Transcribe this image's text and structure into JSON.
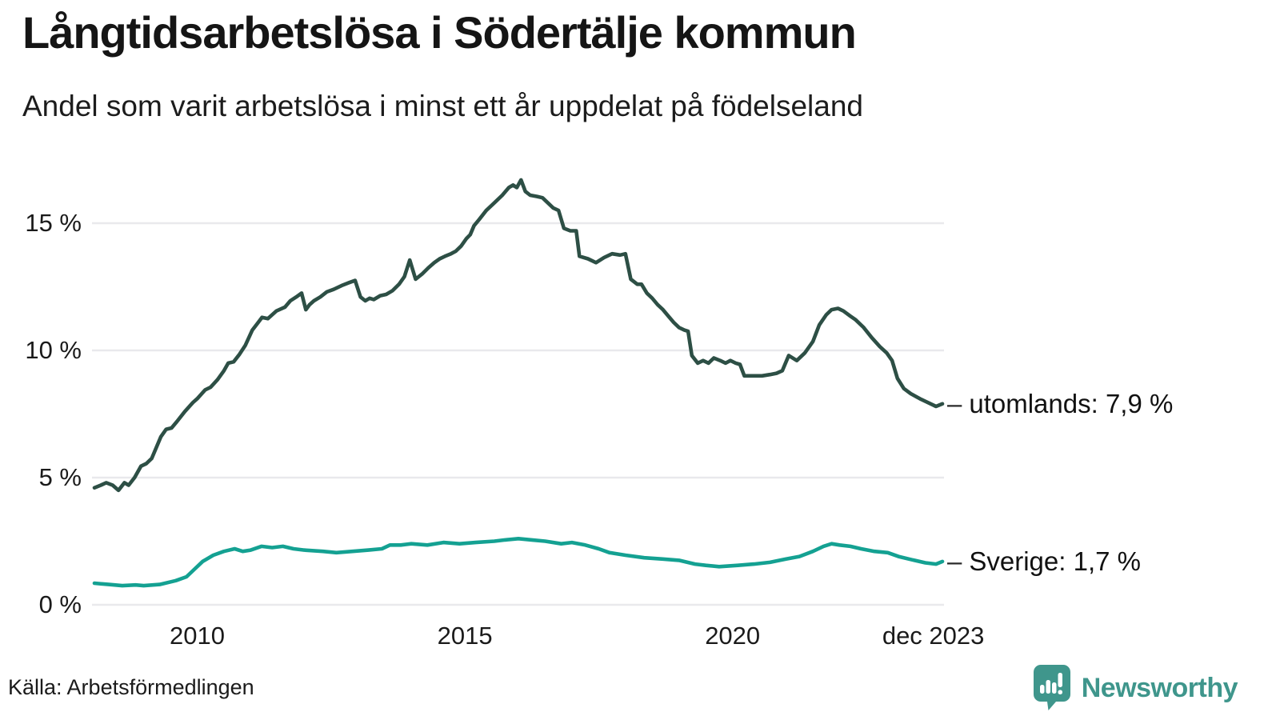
{
  "header": {
    "title": "Långtidsarbetslösa i Södertälje kommun",
    "subtitle": "Andel som varit arbetslösa i minst ett år uppdelat på födelseland"
  },
  "source": {
    "label": "Källa: Arbetsförmedlingen"
  },
  "branding": {
    "name": "Newsworthy",
    "logo_color": "#3f968c"
  },
  "chart_data": {
    "type": "line",
    "title": "Långtidsarbetslösa i Södertälje kommun",
    "subtitle": "Andel som varit arbetslösa i minst ett år uppdelat på födelseland",
    "unit": "%",
    "grid": "horizontal",
    "legend_position": "end-of-line-labels",
    "xlim": [
      2008.08,
      2023.92
    ],
    "ylim": [
      0,
      17.3
    ],
    "background": "#ffffff",
    "gridline_color": "#e9e9ec",
    "y_ticks": [
      {
        "label": "15 %",
        "value": 15
      },
      {
        "label": "10 %",
        "value": 10
      },
      {
        "label": "5 %",
        "value": 5
      },
      {
        "label": "0 %",
        "value": 0
      }
    ],
    "x_ticks": [
      {
        "label": "2010",
        "t": 2010
      },
      {
        "label": "2015",
        "t": 2015
      },
      {
        "label": "2020",
        "t": 2020
      },
      {
        "label": "dec 2023",
        "t": 2023.75
      }
    ],
    "series": [
      {
        "name": "utomlands",
        "end_label": "utomlands: 7,9 %",
        "end_value_text": "7,9 %",
        "color": "#2d4f45",
        "points": [
          [
            2008.08,
            4.6
          ],
          [
            2008.2,
            4.7
          ],
          [
            2008.3,
            4.8
          ],
          [
            2008.42,
            4.7
          ],
          [
            2008.53,
            4.5
          ],
          [
            2008.64,
            4.8
          ],
          [
            2008.72,
            4.7
          ],
          [
            2008.83,
            5.0
          ],
          [
            2008.95,
            5.45
          ],
          [
            2009.05,
            5.55
          ],
          [
            2009.15,
            5.75
          ],
          [
            2009.22,
            6.1
          ],
          [
            2009.32,
            6.6
          ],
          [
            2009.42,
            6.9
          ],
          [
            2009.52,
            6.95
          ],
          [
            2009.62,
            7.2
          ],
          [
            2009.77,
            7.6
          ],
          [
            2009.92,
            7.95
          ],
          [
            2010.0,
            8.1
          ],
          [
            2010.15,
            8.45
          ],
          [
            2010.25,
            8.55
          ],
          [
            2010.38,
            8.85
          ],
          [
            2010.5,
            9.2
          ],
          [
            2010.58,
            9.5
          ],
          [
            2010.68,
            9.55
          ],
          [
            2010.79,
            9.85
          ],
          [
            2010.9,
            10.2
          ],
          [
            2011.03,
            10.8
          ],
          [
            2011.14,
            11.1
          ],
          [
            2011.21,
            11.3
          ],
          [
            2011.32,
            11.25
          ],
          [
            2011.48,
            11.55
          ],
          [
            2011.64,
            11.7
          ],
          [
            2011.74,
            11.95
          ],
          [
            2011.85,
            12.1
          ],
          [
            2011.95,
            12.25
          ],
          [
            2012.03,
            11.6
          ],
          [
            2012.1,
            11.8
          ],
          [
            2012.18,
            11.95
          ],
          [
            2012.3,
            12.1
          ],
          [
            2012.42,
            12.3
          ],
          [
            2012.55,
            12.4
          ],
          [
            2012.7,
            12.55
          ],
          [
            2012.82,
            12.65
          ],
          [
            2012.95,
            12.75
          ],
          [
            2013.05,
            12.1
          ],
          [
            2013.14,
            11.95
          ],
          [
            2013.22,
            12.05
          ],
          [
            2013.3,
            12.0
          ],
          [
            2013.42,
            12.15
          ],
          [
            2013.53,
            12.2
          ],
          [
            2013.65,
            12.35
          ],
          [
            2013.77,
            12.6
          ],
          [
            2013.87,
            12.9
          ],
          [
            2013.97,
            13.55
          ],
          [
            2014.08,
            12.8
          ],
          [
            2014.2,
            13.0
          ],
          [
            2014.32,
            13.25
          ],
          [
            2014.43,
            13.45
          ],
          [
            2014.53,
            13.6
          ],
          [
            2014.63,
            13.7
          ],
          [
            2014.74,
            13.8
          ],
          [
            2014.83,
            13.9
          ],
          [
            2014.93,
            14.1
          ],
          [
            2015.03,
            14.4
          ],
          [
            2015.1,
            14.55
          ],
          [
            2015.17,
            14.9
          ],
          [
            2015.27,
            15.15
          ],
          [
            2015.4,
            15.5
          ],
          [
            2015.55,
            15.8
          ],
          [
            2015.7,
            16.1
          ],
          [
            2015.82,
            16.4
          ],
          [
            2015.9,
            16.5
          ],
          [
            2015.97,
            16.4
          ],
          [
            2016.05,
            16.7
          ],
          [
            2016.13,
            16.25
          ],
          [
            2016.22,
            16.1
          ],
          [
            2016.35,
            16.05
          ],
          [
            2016.45,
            16.0
          ],
          [
            2016.55,
            15.8
          ],
          [
            2016.65,
            15.6
          ],
          [
            2016.75,
            15.5
          ],
          [
            2016.85,
            14.8
          ],
          [
            2016.97,
            14.7
          ],
          [
            2017.08,
            14.7
          ],
          [
            2017.14,
            13.7
          ],
          [
            2017.3,
            13.6
          ],
          [
            2017.45,
            13.45
          ],
          [
            2017.6,
            13.65
          ],
          [
            2017.75,
            13.8
          ],
          [
            2017.9,
            13.75
          ],
          [
            2018.0,
            13.8
          ],
          [
            2018.1,
            12.8
          ],
          [
            2018.22,
            12.6
          ],
          [
            2018.3,
            12.6
          ],
          [
            2018.4,
            12.25
          ],
          [
            2018.5,
            12.05
          ],
          [
            2018.6,
            11.8
          ],
          [
            2018.7,
            11.6
          ],
          [
            2018.8,
            11.35
          ],
          [
            2018.9,
            11.1
          ],
          [
            2019.0,
            10.9
          ],
          [
            2019.1,
            10.8
          ],
          [
            2019.17,
            10.75
          ],
          [
            2019.24,
            9.8
          ],
          [
            2019.35,
            9.5
          ],
          [
            2019.45,
            9.6
          ],
          [
            2019.55,
            9.5
          ],
          [
            2019.65,
            9.7
          ],
          [
            2019.77,
            9.6
          ],
          [
            2019.87,
            9.5
          ],
          [
            2019.96,
            9.6
          ],
          [
            2020.06,
            9.5
          ],
          [
            2020.14,
            9.45
          ],
          [
            2020.22,
            9.0
          ],
          [
            2020.4,
            9.0
          ],
          [
            2020.55,
            9.0
          ],
          [
            2020.7,
            9.05
          ],
          [
            2020.82,
            9.1
          ],
          [
            2020.93,
            9.2
          ],
          [
            2021.05,
            9.8
          ],
          [
            2021.2,
            9.6
          ],
          [
            2021.35,
            9.9
          ],
          [
            2021.5,
            10.35
          ],
          [
            2021.62,
            11.0
          ],
          [
            2021.75,
            11.4
          ],
          [
            2021.85,
            11.6
          ],
          [
            2021.97,
            11.65
          ],
          [
            2022.07,
            11.55
          ],
          [
            2022.2,
            11.35
          ],
          [
            2022.3,
            11.2
          ],
          [
            2022.45,
            10.9
          ],
          [
            2022.6,
            10.5
          ],
          [
            2022.75,
            10.15
          ],
          [
            2022.88,
            9.9
          ],
          [
            2022.98,
            9.6
          ],
          [
            2023.08,
            8.9
          ],
          [
            2023.2,
            8.5
          ],
          [
            2023.33,
            8.3
          ],
          [
            2023.5,
            8.1
          ],
          [
            2023.65,
            7.95
          ],
          [
            2023.8,
            7.8
          ],
          [
            2023.92,
            7.9
          ]
        ]
      },
      {
        "name": "Sverige",
        "end_label": "Sverige: 1,7 %",
        "end_value_text": "1,7 %",
        "color": "#14a192",
        "points": [
          [
            2008.08,
            0.85
          ],
          [
            2008.35,
            0.8
          ],
          [
            2008.6,
            0.75
          ],
          [
            2008.85,
            0.78
          ],
          [
            2009.0,
            0.75
          ],
          [
            2009.3,
            0.8
          ],
          [
            2009.6,
            0.95
          ],
          [
            2009.8,
            1.1
          ],
          [
            2009.95,
            1.4
          ],
          [
            2010.1,
            1.7
          ],
          [
            2010.3,
            1.95
          ],
          [
            2010.5,
            2.1
          ],
          [
            2010.7,
            2.2
          ],
          [
            2010.85,
            2.1
          ],
          [
            2011.0,
            2.15
          ],
          [
            2011.2,
            2.3
          ],
          [
            2011.4,
            2.25
          ],
          [
            2011.6,
            2.3
          ],
          [
            2011.8,
            2.2
          ],
          [
            2012.0,
            2.15
          ],
          [
            2012.35,
            2.1
          ],
          [
            2012.6,
            2.05
          ],
          [
            2012.9,
            2.1
          ],
          [
            2013.2,
            2.15
          ],
          [
            2013.45,
            2.2
          ],
          [
            2013.6,
            2.35
          ],
          [
            2013.8,
            2.35
          ],
          [
            2014.0,
            2.4
          ],
          [
            2014.3,
            2.35
          ],
          [
            2014.6,
            2.45
          ],
          [
            2014.9,
            2.4
          ],
          [
            2015.2,
            2.45
          ],
          [
            2015.55,
            2.5
          ],
          [
            2015.75,
            2.55
          ],
          [
            2016.0,
            2.6
          ],
          [
            2016.25,
            2.55
          ],
          [
            2016.5,
            2.5
          ],
          [
            2016.8,
            2.4
          ],
          [
            2017.0,
            2.45
          ],
          [
            2017.25,
            2.35
          ],
          [
            2017.5,
            2.2
          ],
          [
            2017.7,
            2.05
          ],
          [
            2018.0,
            1.95
          ],
          [
            2018.35,
            1.85
          ],
          [
            2018.7,
            1.8
          ],
          [
            2019.0,
            1.75
          ],
          [
            2019.3,
            1.6
          ],
          [
            2019.5,
            1.55
          ],
          [
            2019.75,
            1.5
          ],
          [
            2020.1,
            1.55
          ],
          [
            2020.4,
            1.6
          ],
          [
            2020.7,
            1.67
          ],
          [
            2021.0,
            1.8
          ],
          [
            2021.25,
            1.9
          ],
          [
            2021.5,
            2.1
          ],
          [
            2021.7,
            2.3
          ],
          [
            2021.85,
            2.4
          ],
          [
            2022.0,
            2.35
          ],
          [
            2022.2,
            2.3
          ],
          [
            2022.4,
            2.2
          ],
          [
            2022.65,
            2.1
          ],
          [
            2022.9,
            2.05
          ],
          [
            2023.1,
            1.9
          ],
          [
            2023.35,
            1.77
          ],
          [
            2023.6,
            1.65
          ],
          [
            2023.8,
            1.6
          ],
          [
            2023.92,
            1.7
          ]
        ]
      }
    ]
  }
}
